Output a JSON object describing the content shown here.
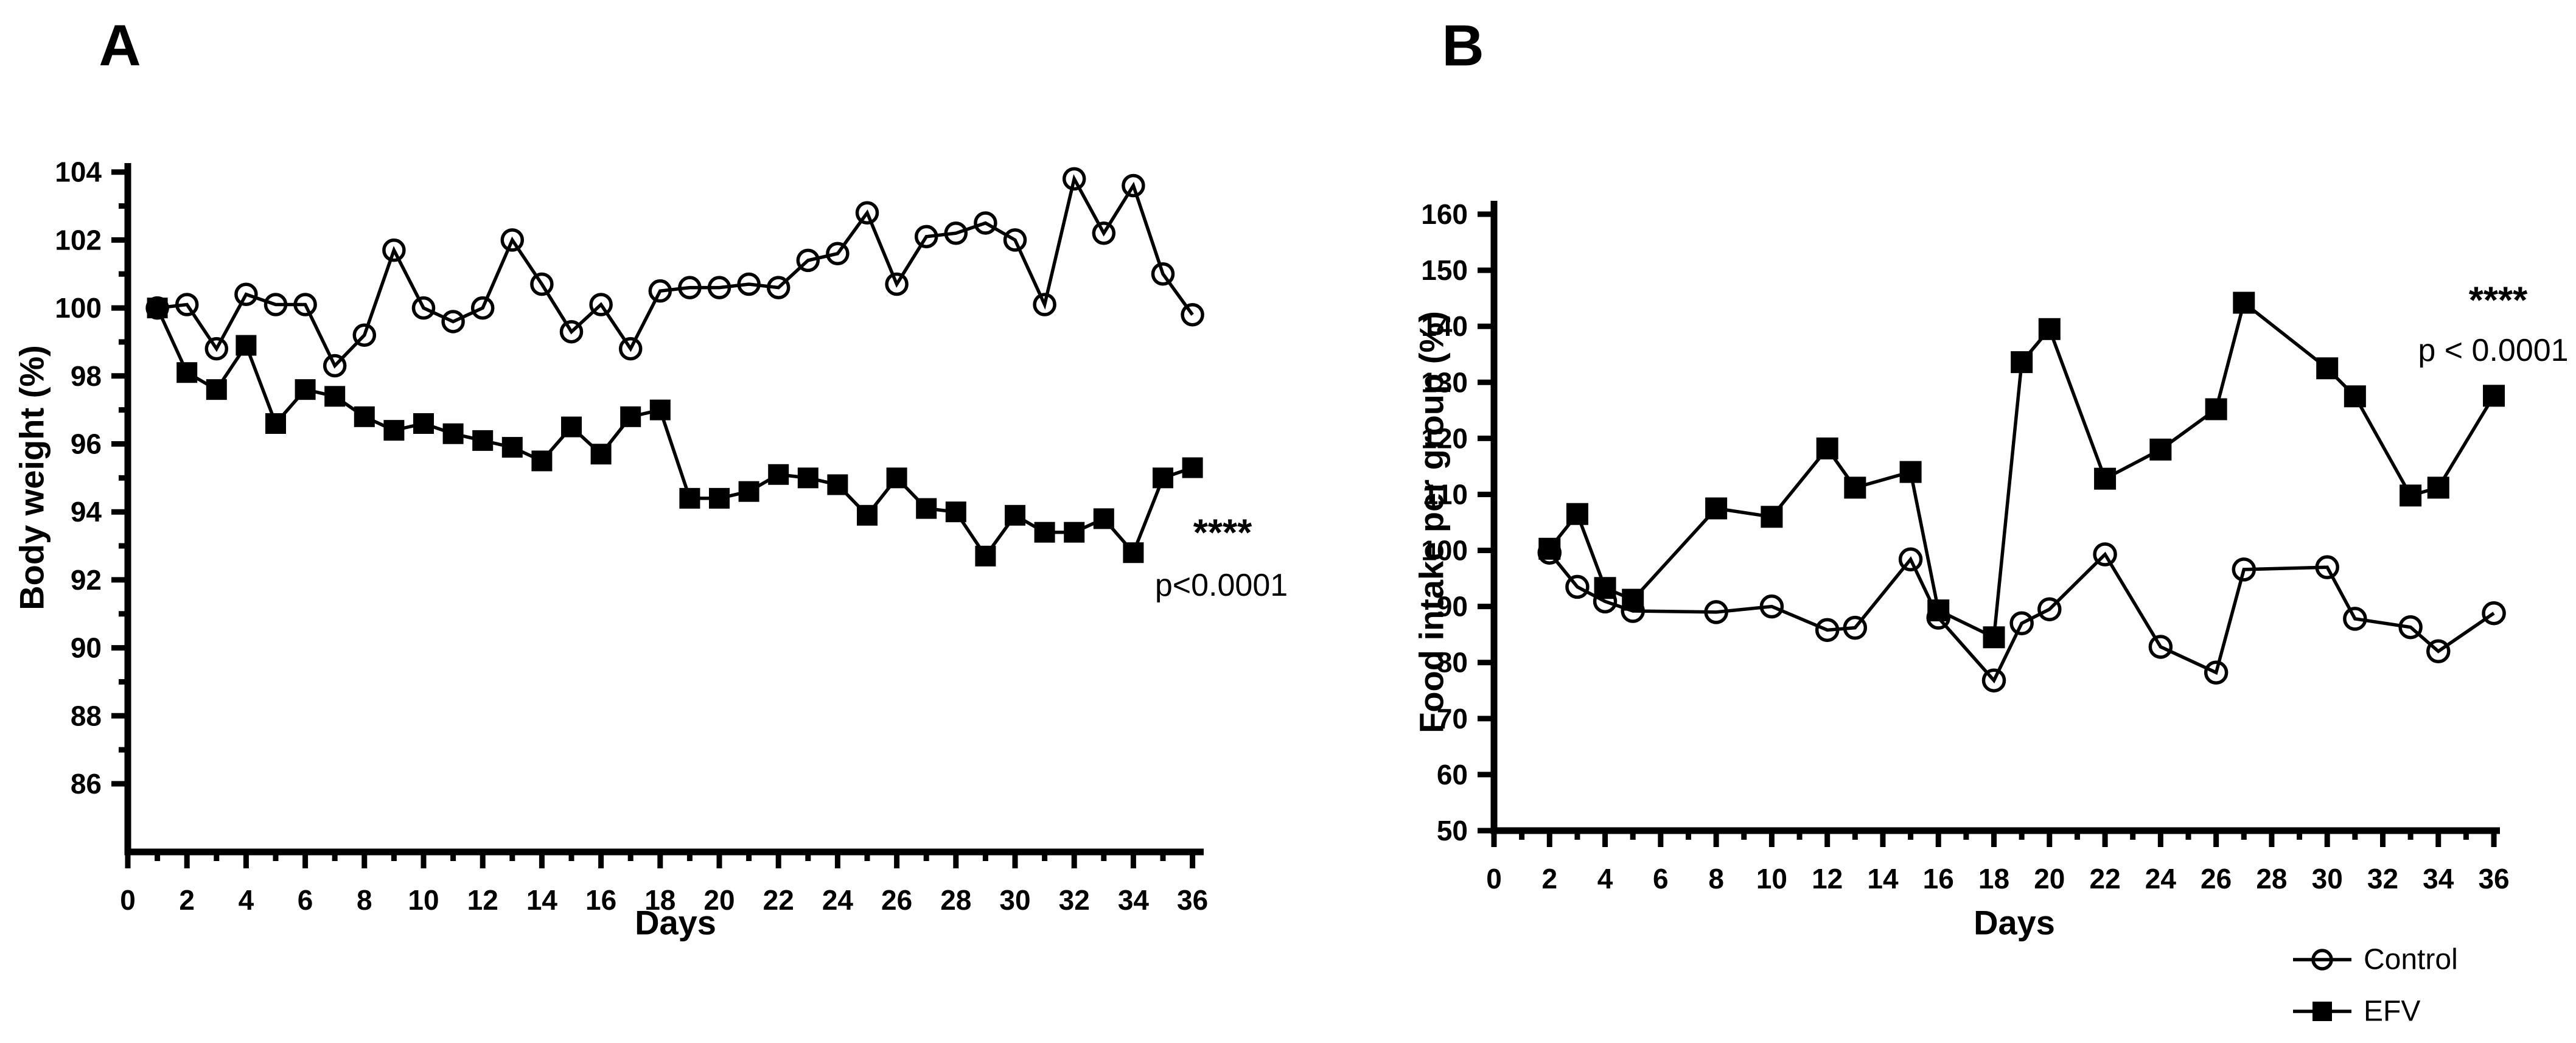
{
  "figure_background": "#ffffff",
  "ink_color": "#000000",
  "legend": {
    "position": "bottom-right",
    "items": [
      {
        "label": "Control",
        "marker": "circle-open"
      },
      {
        "label": "EFV",
        "marker": "square-filled"
      }
    ]
  },
  "chart_data": [
    {
      "type": "line",
      "panel_letter": "A",
      "xlabel": "Days",
      "ylabel": "Body weight (%)",
      "xlim": [
        0,
        36
      ],
      "ylim": [
        86,
        104
      ],
      "x_tick_step": 2,
      "x_minor_tick_step": 1,
      "y_tick_step": 2,
      "y_minor_ticks": true,
      "x_ticks": [
        0,
        2,
        4,
        6,
        8,
        10,
        12,
        14,
        16,
        18,
        20,
        22,
        24,
        26,
        28,
        30,
        32,
        34,
        36
      ],
      "y_ticks": [
        86,
        88,
        90,
        92,
        94,
        96,
        98,
        100,
        102,
        104
      ],
      "grid": false,
      "legend_position": "none",
      "annotation": {
        "stars": "****",
        "p_text": "p<0.0001"
      },
      "series": [
        {
          "name": "Control",
          "marker": "circle-open",
          "x": [
            1,
            2,
            3,
            4,
            5,
            6,
            7,
            8,
            9,
            10,
            11,
            12,
            13,
            14,
            15,
            16,
            17,
            18,
            19,
            20,
            21,
            22,
            23,
            24,
            25,
            26,
            27,
            28,
            29,
            30,
            31,
            32,
            33,
            34,
            35,
            36
          ],
          "values": [
            100.0,
            100.1,
            98.8,
            100.4,
            100.1,
            100.1,
            98.3,
            99.2,
            101.7,
            100.0,
            99.6,
            100.0,
            102.0,
            100.7,
            99.3,
            100.1,
            98.8,
            100.5,
            100.6,
            100.6,
            100.7,
            100.6,
            101.4,
            101.6,
            102.8,
            100.7,
            102.1,
            102.2,
            102.5,
            102.0,
            100.1,
            103.8,
            102.2,
            103.6,
            101.0,
            99.8
          ]
        },
        {
          "name": "EFV",
          "marker": "square-filled",
          "x": [
            1,
            2,
            3,
            4,
            5,
            6,
            7,
            8,
            9,
            10,
            11,
            12,
            13,
            14,
            15,
            16,
            17,
            18,
            19,
            20,
            21,
            22,
            23,
            24,
            25,
            26,
            27,
            28,
            29,
            30,
            31,
            32,
            33,
            34,
            35,
            36
          ],
          "values": [
            100.0,
            98.1,
            97.6,
            98.9,
            96.6,
            97.6,
            97.4,
            96.8,
            96.4,
            96.6,
            96.3,
            96.1,
            95.9,
            95.5,
            96.5,
            95.7,
            96.8,
            97.0,
            94.4,
            94.4,
            94.6,
            95.1,
            95.0,
            94.8,
            93.9,
            95.0,
            94.1,
            94.0,
            92.7,
            93.9,
            93.4,
            93.4,
            93.8,
            92.8,
            95.0,
            95.3
          ]
        }
      ]
    },
    {
      "type": "line",
      "panel_letter": "B",
      "xlabel": "Days",
      "ylabel": "Food intake per group (%)",
      "xlim": [
        0,
        36
      ],
      "ylim": [
        50,
        160
      ],
      "x_tick_step": 2,
      "x_minor_tick_step": 1,
      "y_tick_step": 10,
      "y_minor_ticks": false,
      "x_ticks": [
        0,
        2,
        4,
        6,
        8,
        10,
        12,
        14,
        16,
        18,
        20,
        22,
        24,
        26,
        28,
        30,
        32,
        34,
        36
      ],
      "y_ticks": [
        50,
        60,
        70,
        80,
        90,
        100,
        110,
        120,
        130,
        140,
        150,
        160
      ],
      "grid": false,
      "legend_position": "below-right",
      "annotation": {
        "stars": "****",
        "p_text": "p < 0.0001"
      },
      "series": [
        {
          "name": "Control",
          "marker": "circle-open",
          "x": [
            2,
            3,
            4,
            5,
            8,
            10,
            12,
            13,
            15,
            16,
            18,
            19,
            20,
            22,
            24,
            26,
            27,
            30,
            31,
            33,
            34,
            36
          ],
          "values": [
            99.6,
            93.5,
            90.9,
            89.2,
            89.0,
            90.0,
            85.8,
            86.2,
            98.4,
            88.0,
            76.8,
            87.0,
            89.5,
            99.3,
            82.8,
            78.2,
            96.6,
            97.0,
            87.8,
            86.3,
            82.0,
            88.8
          ]
        },
        {
          "name": "EFV",
          "marker": "square-filled",
          "x": [
            2,
            3,
            4,
            5,
            8,
            10,
            12,
            13,
            15,
            16,
            18,
            19,
            20,
            22,
            24,
            26,
            27,
            30,
            31,
            33,
            34,
            36
          ],
          "values": [
            100.3,
            106.5,
            93.3,
            91.2,
            107.5,
            106.0,
            118.2,
            111.2,
            114.0,
            89.3,
            84.5,
            133.6,
            139.5,
            112.8,
            118.0,
            125.2,
            144.2,
            132.5,
            127.5,
            109.8,
            111.2,
            127.6
          ]
        }
      ]
    }
  ]
}
